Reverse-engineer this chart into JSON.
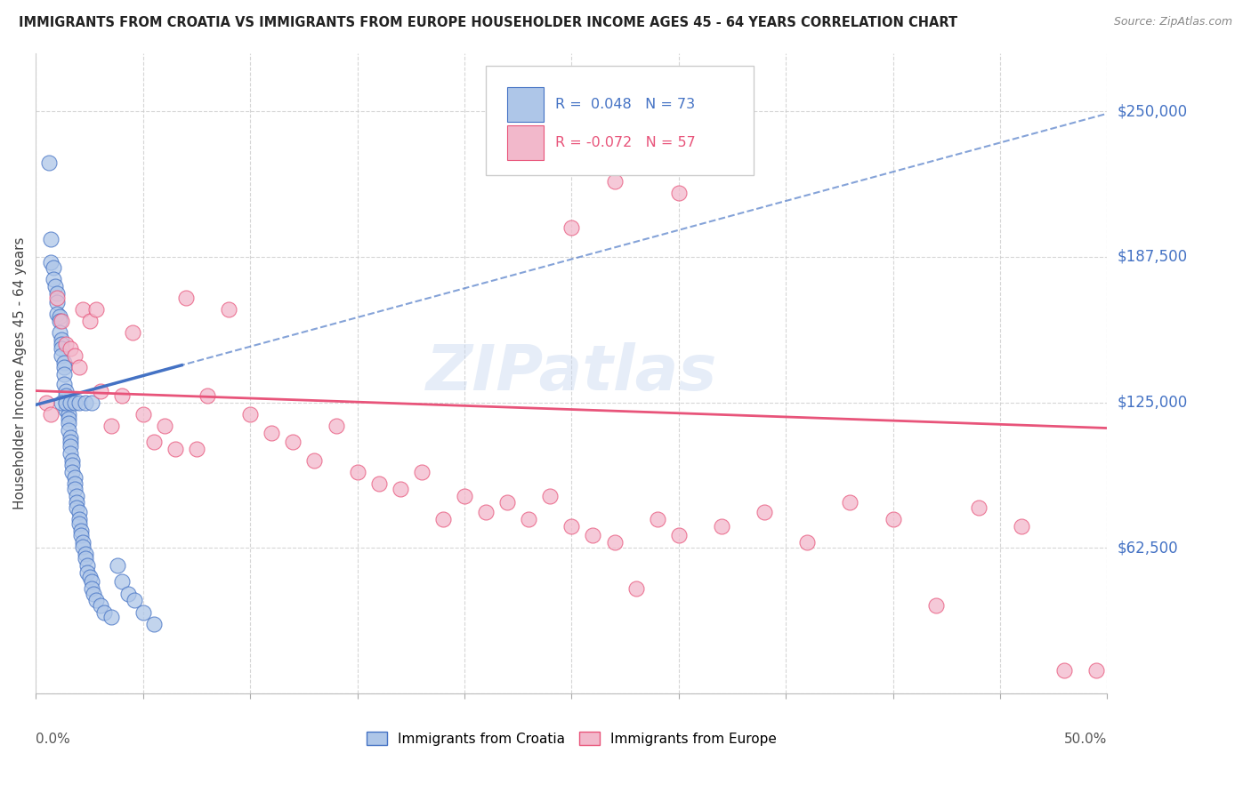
{
  "title": "IMMIGRANTS FROM CROATIA VS IMMIGRANTS FROM EUROPE HOUSEHOLDER INCOME AGES 45 - 64 YEARS CORRELATION CHART",
  "source": "Source: ZipAtlas.com",
  "ylabel": "Householder Income Ages 45 - 64 years",
  "xlim": [
    0,
    0.5
  ],
  "ylim": [
    0,
    275000
  ],
  "yticks": [
    0,
    62500,
    125000,
    187500,
    250000
  ],
  "ytick_labels": [
    "",
    "$62,500",
    "$125,000",
    "$187,500",
    "$250,000"
  ],
  "color_croatia": "#aec6e8",
  "color_europe": "#f2b8cb",
  "color_line_croatia": "#4472c4",
  "color_line_europe": "#e8547a",
  "color_title": "#222222",
  "color_yaxis_labels": "#4472c4",
  "watermark": "ZIPatlas",
  "legend_r1_val": "0.048",
  "legend_n1_val": "73",
  "legend_r2_val": "-0.072",
  "legend_n2_val": "57",
  "croatia_x": [
    0.006,
    0.007,
    0.007,
    0.008,
    0.008,
    0.009,
    0.01,
    0.01,
    0.01,
    0.011,
    0.011,
    0.011,
    0.012,
    0.012,
    0.012,
    0.012,
    0.013,
    0.013,
    0.013,
    0.013,
    0.014,
    0.014,
    0.014,
    0.014,
    0.015,
    0.015,
    0.015,
    0.015,
    0.016,
    0.016,
    0.016,
    0.016,
    0.017,
    0.017,
    0.017,
    0.018,
    0.018,
    0.018,
    0.019,
    0.019,
    0.019,
    0.02,
    0.02,
    0.02,
    0.021,
    0.021,
    0.022,
    0.022,
    0.023,
    0.023,
    0.024,
    0.024,
    0.025,
    0.026,
    0.026,
    0.027,
    0.028,
    0.03,
    0.032,
    0.035,
    0.038,
    0.04,
    0.043,
    0.046,
    0.05,
    0.055,
    0.012,
    0.014,
    0.016,
    0.018,
    0.02,
    0.023,
    0.026
  ],
  "croatia_y": [
    228000,
    195000,
    185000,
    183000,
    178000,
    175000,
    172000,
    168000,
    163000,
    162000,
    160000,
    155000,
    152000,
    150000,
    148000,
    145000,
    142000,
    140000,
    137000,
    133000,
    130000,
    128000,
    125000,
    122000,
    120000,
    118000,
    116000,
    113000,
    110000,
    108000,
    106000,
    103000,
    100000,
    98000,
    95000,
    93000,
    90000,
    88000,
    85000,
    82000,
    80000,
    78000,
    75000,
    73000,
    70000,
    68000,
    65000,
    63000,
    60000,
    58000,
    55000,
    52000,
    50000,
    48000,
    45000,
    43000,
    40000,
    38000,
    35000,
    33000,
    55000,
    48000,
    43000,
    40000,
    35000,
    30000,
    125000,
    125000,
    125000,
    125000,
    125000,
    125000,
    125000
  ],
  "europe_x": [
    0.005,
    0.007,
    0.01,
    0.012,
    0.014,
    0.016,
    0.018,
    0.02,
    0.022,
    0.025,
    0.028,
    0.03,
    0.035,
    0.04,
    0.045,
    0.05,
    0.055,
    0.06,
    0.065,
    0.07,
    0.075,
    0.08,
    0.09,
    0.1,
    0.11,
    0.12,
    0.13,
    0.14,
    0.15,
    0.16,
    0.17,
    0.18,
    0.19,
    0.2,
    0.21,
    0.22,
    0.23,
    0.24,
    0.25,
    0.26,
    0.27,
    0.28,
    0.29,
    0.3,
    0.32,
    0.34,
    0.36,
    0.38,
    0.4,
    0.42,
    0.44,
    0.46,
    0.48,
    0.495,
    0.25,
    0.27,
    0.3
  ],
  "europe_y": [
    125000,
    120000,
    170000,
    160000,
    150000,
    148000,
    145000,
    140000,
    165000,
    160000,
    165000,
    130000,
    115000,
    128000,
    155000,
    120000,
    108000,
    115000,
    105000,
    170000,
    105000,
    128000,
    165000,
    120000,
    112000,
    108000,
    100000,
    115000,
    95000,
    90000,
    88000,
    95000,
    75000,
    85000,
    78000,
    82000,
    75000,
    85000,
    72000,
    68000,
    65000,
    45000,
    75000,
    68000,
    72000,
    78000,
    65000,
    82000,
    75000,
    38000,
    80000,
    72000,
    10000,
    10000,
    200000,
    220000,
    215000
  ]
}
